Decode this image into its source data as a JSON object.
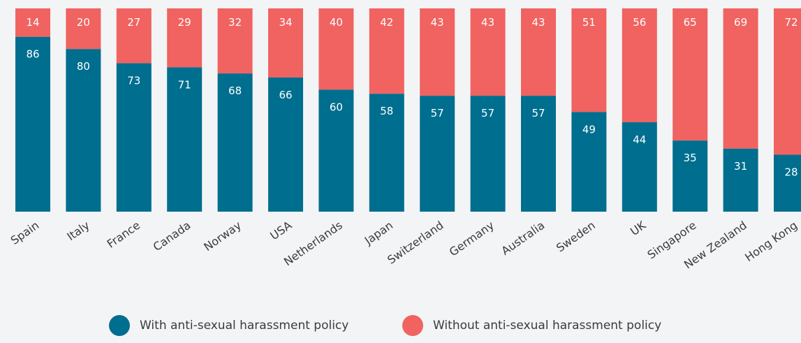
{
  "colors": {
    "with_policy": "#006e8f",
    "without_policy": "#f06360",
    "text": "#3b3b3b",
    "background": "#f3f4f6"
  },
  "legend": {
    "with_label": "With anti-sexual harassment policy",
    "without_label": "Without anti-sexual harassment policy"
  },
  "chart_data": {
    "type": "bar",
    "stacked": true,
    "title": "",
    "xlabel": "",
    "ylabel": "",
    "ylim": [
      0,
      100
    ],
    "grid": false,
    "legend_position": "bottom",
    "categories": [
      "Spain",
      "Italy",
      "France",
      "Canada",
      "Norway",
      "USA",
      "Netherlands",
      "Japan",
      "Switzerland",
      "Germany",
      "Australia",
      "Sweden",
      "UK",
      "Singapore",
      "New Zealand",
      "Hong Kong"
    ],
    "series": [
      {
        "name": "With anti-sexual harassment policy",
        "values": [
          86,
          80,
          73,
          71,
          68,
          66,
          60,
          58,
          57,
          57,
          57,
          49,
          44,
          35,
          31,
          28
        ]
      },
      {
        "name": "Without anti-sexual harassment policy",
        "values": [
          14,
          20,
          27,
          29,
          32,
          34,
          40,
          42,
          43,
          43,
          43,
          51,
          56,
          65,
          69,
          72
        ]
      }
    ]
  }
}
